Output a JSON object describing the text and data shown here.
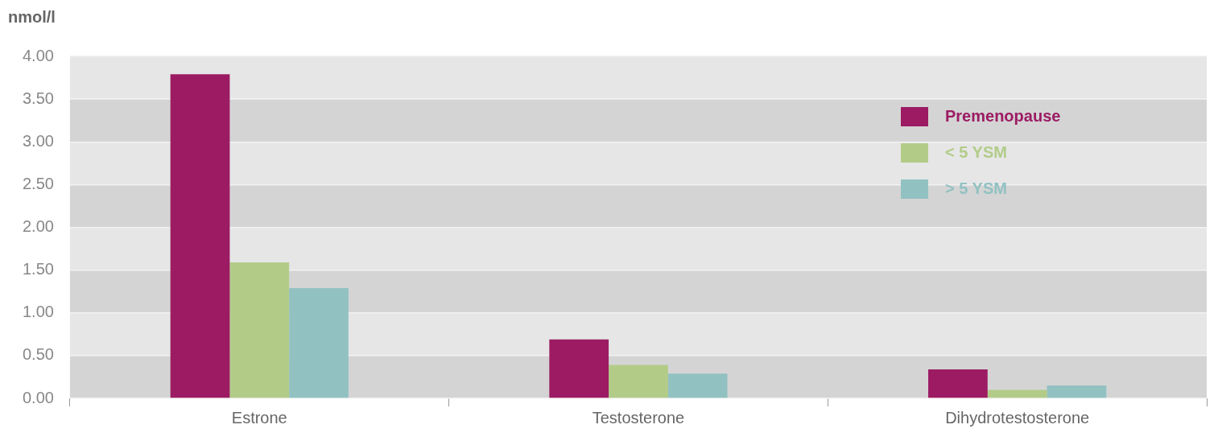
{
  "chart_data": {
    "type": "bar",
    "ylabel": "nmol/l",
    "categories": [
      "Estrone",
      "Testosterone",
      "Dihydrotestosterone"
    ],
    "series": [
      {
        "name": "Premenopause",
        "color": "#9c1b63",
        "values": [
          3.79,
          0.69,
          0.34
        ]
      },
      {
        "name": "< 5 YSM",
        "color": "#b2cc88",
        "values": [
          1.59,
          0.39,
          0.1
        ]
      },
      {
        "name": "> 5 YSM",
        "color": "#92c1c2",
        "values": [
          1.29,
          0.29,
          0.15
        ]
      }
    ],
    "ylim": [
      0,
      4
    ],
    "yticks": [
      {
        "value": 0,
        "label": "0.00"
      },
      {
        "value": 0.5,
        "label": "0.50"
      },
      {
        "value": 1,
        "label": "1.00"
      },
      {
        "value": 1.5,
        "label": "1.50"
      },
      {
        "value": 2,
        "label": "2.00"
      },
      {
        "value": 2.5,
        "label": "2.50"
      },
      {
        "value": 3,
        "label": "3.00"
      },
      {
        "value": 3.5,
        "label": "3.50"
      },
      {
        "value": 4,
        "label": "4.00"
      }
    ],
    "grid": "y",
    "legend": "top right"
  }
}
